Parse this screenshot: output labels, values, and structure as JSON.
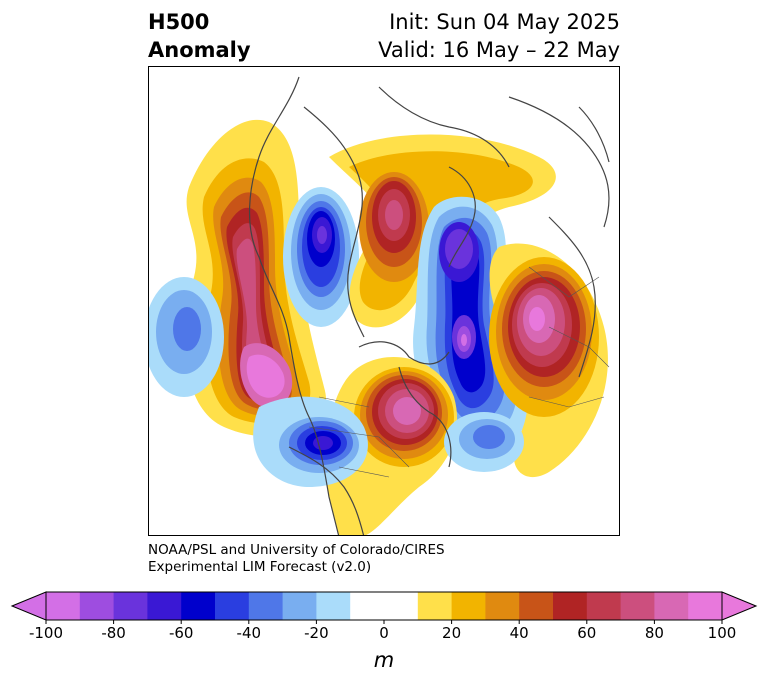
{
  "title": {
    "left_line1": "H500",
    "left_line2": "Anomaly",
    "right_line1": "Init: Sun 04 May 2025",
    "right_line2": "Valid: 16 May – 22 May"
  },
  "credit": {
    "line1": "NOAA/PSL and University of Colorado/CIRES",
    "line2": "Experimental LIM Forecast (v2.0)"
  },
  "colorbar": {
    "unit_label": "m",
    "ticks": [
      "-100",
      "-80",
      "-60",
      "-40",
      "-20",
      "0",
      "20",
      "40",
      "60",
      "80",
      "100"
    ],
    "tick_values": [
      -100,
      -80,
      -60,
      -40,
      -20,
      0,
      20,
      40,
      60,
      80,
      100
    ],
    "colors": [
      "#d36fe6",
      "#9e4de0",
      "#6a33dc",
      "#3a18d4",
      "#0000cc",
      "#2a3ee0",
      "#4f77e8",
      "#79aef0",
      "#aadcfa",
      "#ffffff",
      "#ffffff",
      "#ffe04a",
      "#f2b400",
      "#e08a10",
      "#c85418",
      "#b02424",
      "#c03a4e",
      "#cc4f7e",
      "#d868b4",
      "#e878dc"
    ],
    "extend_low_color": "#d36fe6",
    "extend_high_color": "#e878dc"
  },
  "map": {
    "projection": "north polar stereographic",
    "field": "500 hPa geopotential height anomaly",
    "units": "m"
  }
}
